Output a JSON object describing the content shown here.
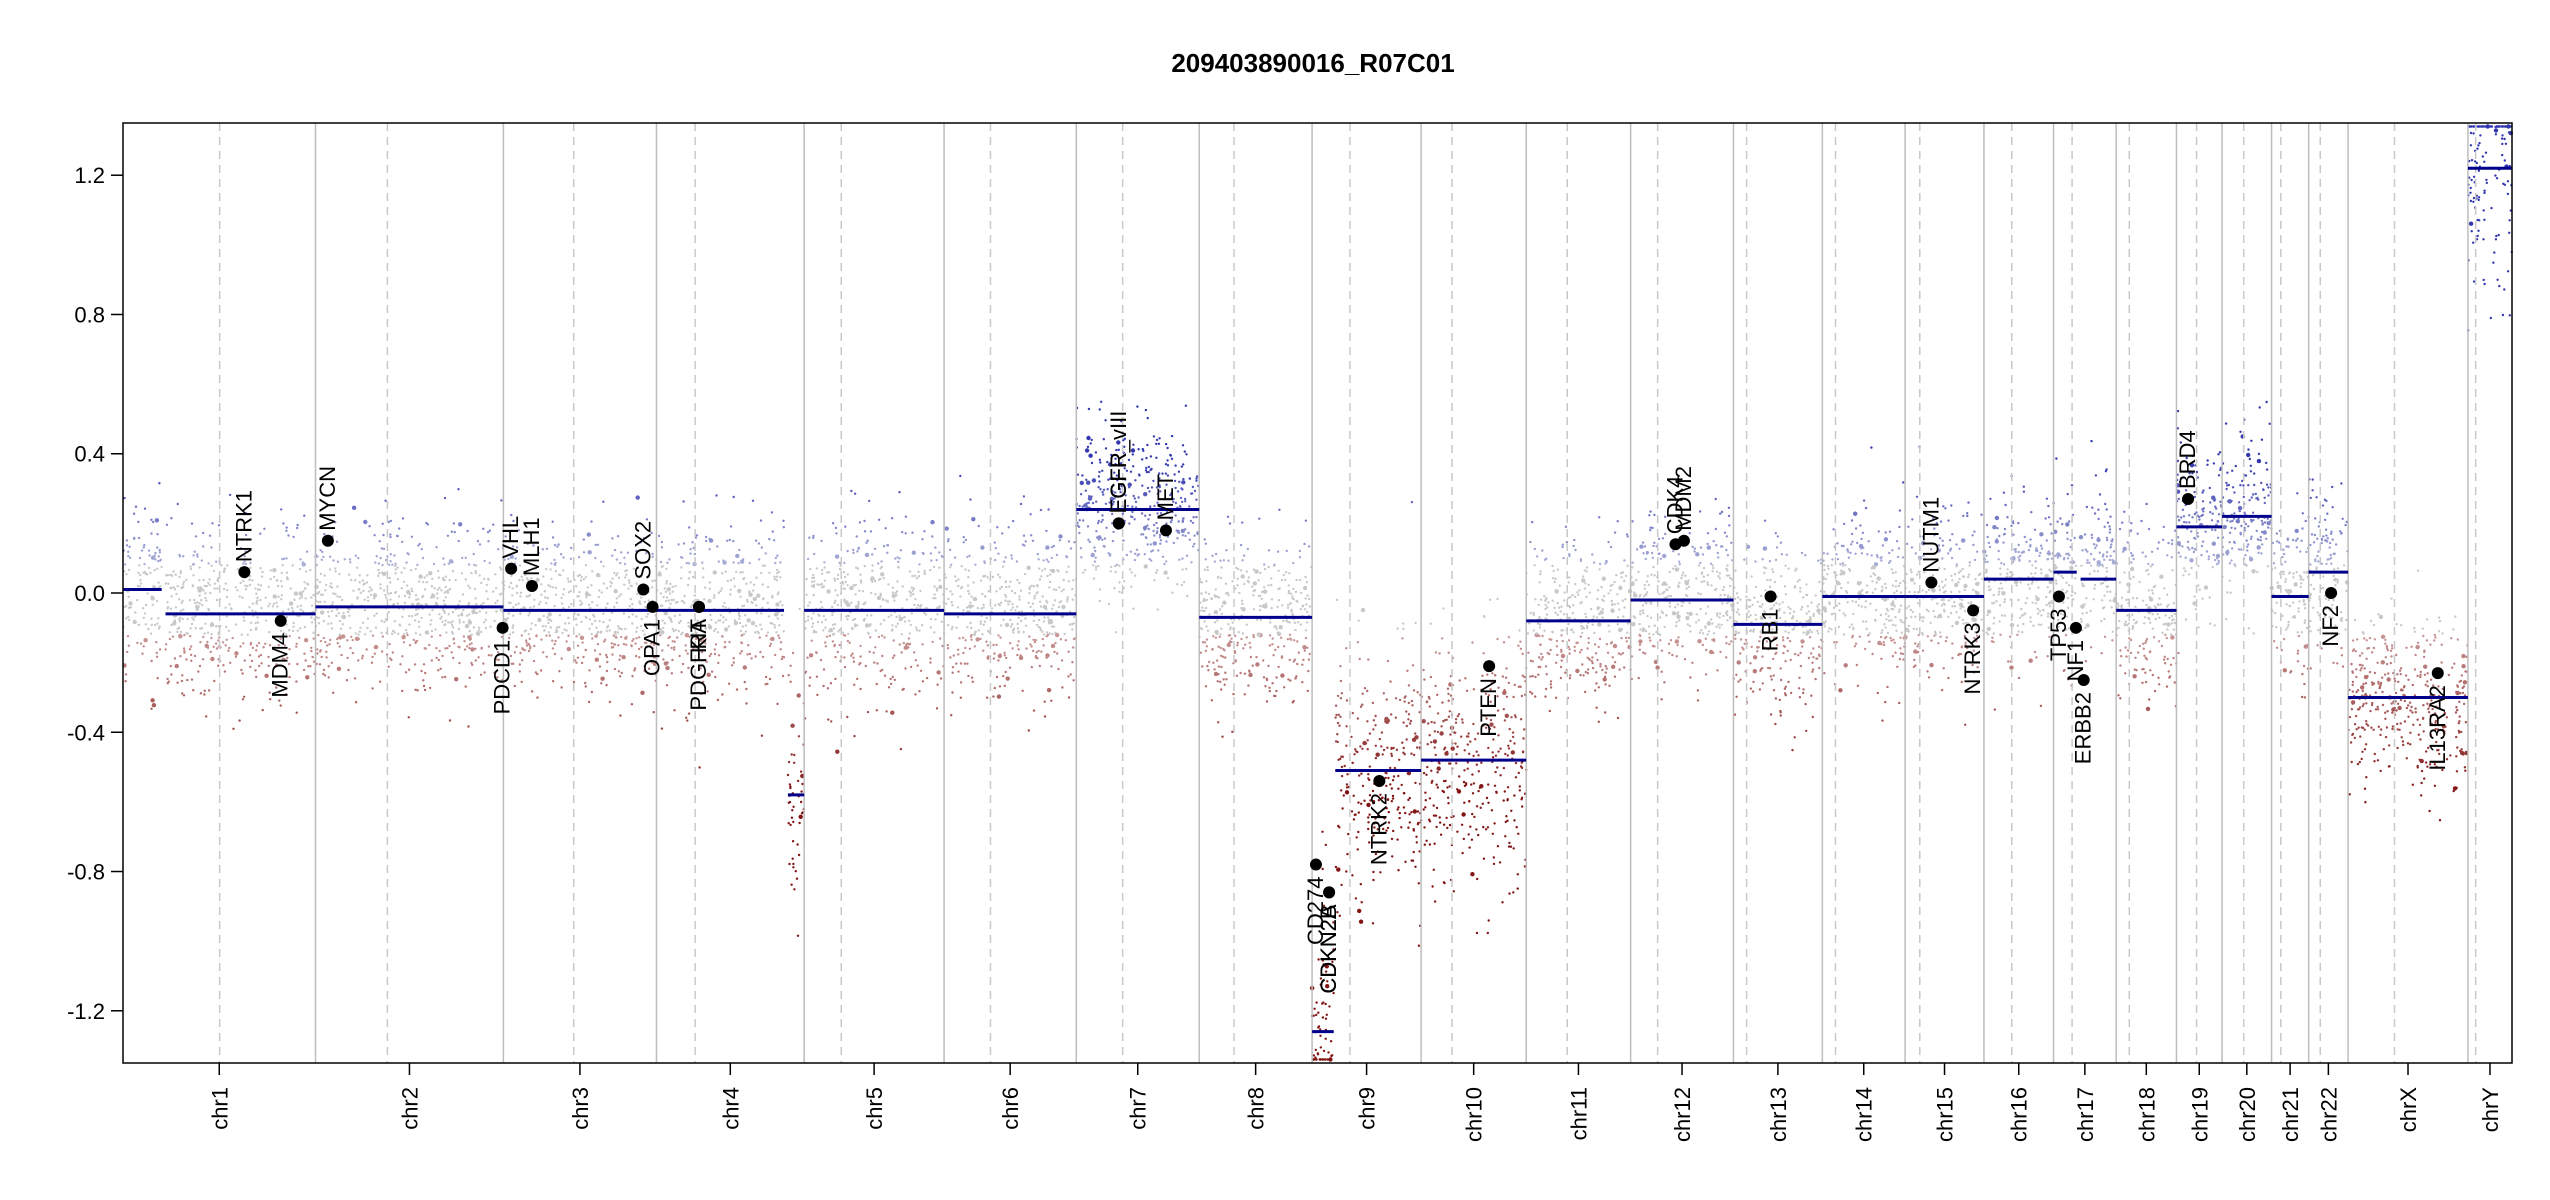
{
  "chart_data": {
    "type": "scatter",
    "title": "209403890016_R07C01",
    "xlabel": "",
    "ylabel": "",
    "ylim": [
      -1.35,
      1.35
    ],
    "y_ticks": [
      -1.2,
      -0.8,
      -0.4,
      0.0,
      0.4,
      0.8,
      1.2
    ],
    "y_tick_labels": [
      "-1.2",
      "-0.8",
      "-0.4",
      "0.0",
      "0.4",
      "0.8",
      "1.2"
    ],
    "grid": false,
    "legend": "none",
    "colors": {
      "gain": "#1f2fa0",
      "neutral": "#bfbfbf",
      "loss": "#8b1a1a",
      "segment": "#00008b",
      "chrom_boundary": "#bdbdbd",
      "centromere": "#c8c8c8",
      "gene_marker": "#000000"
    },
    "chromosomes": [
      {
        "name": "chr1",
        "len": 249,
        "cen": 125
      },
      {
        "name": "chr2",
        "len": 243,
        "cen": 93
      },
      {
        "name": "chr3",
        "len": 198,
        "cen": 91
      },
      {
        "name": "chr4",
        "len": 191,
        "cen": 50
      },
      {
        "name": "chr5",
        "len": 181,
        "cen": 48
      },
      {
        "name": "chr6",
        "len": 171,
        "cen": 60
      },
      {
        "name": "chr7",
        "len": 159,
        "cen": 60
      },
      {
        "name": "chr8",
        "len": 146,
        "cen": 45
      },
      {
        "name": "chr9",
        "len": 141,
        "cen": 49
      },
      {
        "name": "chr10",
        "len": 136,
        "cen": 40
      },
      {
        "name": "chr11",
        "len": 135,
        "cen": 53
      },
      {
        "name": "chr12",
        "len": 133,
        "cen": 35
      },
      {
        "name": "chr13",
        "len": 115,
        "cen": 17
      },
      {
        "name": "chr14",
        "len": 107,
        "cen": 17
      },
      {
        "name": "chr15",
        "len": 102,
        "cen": 19
      },
      {
        "name": "chr16",
        "len": 90,
        "cen": 36
      },
      {
        "name": "chr17",
        "len": 81,
        "cen": 24
      },
      {
        "name": "chr18",
        "len": 78,
        "cen": 17
      },
      {
        "name": "chr19",
        "len": 59,
        "cen": 26
      },
      {
        "name": "chr20",
        "len": 64,
        "cen": 28
      },
      {
        "name": "chr21",
        "len": 48,
        "cen": 12
      },
      {
        "name": "chr22",
        "len": 51,
        "cen": 15
      },
      {
        "name": "chrX",
        "len": 155,
        "cen": 60
      },
      {
        "name": "chrY",
        "len": 57,
        "cen": 10
      }
    ],
    "segments": [
      {
        "chr": "chr1",
        "start": 0,
        "end": 50,
        "value": 0.01
      },
      {
        "chr": "chr1",
        "start": 55,
        "end": 249,
        "value": -0.06
      },
      {
        "chr": "chr2",
        "start": 0,
        "end": 243,
        "value": -0.04
      },
      {
        "chr": "chr3",
        "start": 0,
        "end": 198,
        "value": -0.05
      },
      {
        "chr": "chr4",
        "start": 0,
        "end": 165,
        "value": -0.05
      },
      {
        "chr": "chr4",
        "start": 170,
        "end": 191,
        "value": -0.58
      },
      {
        "chr": "chr5",
        "start": 0,
        "end": 181,
        "value": -0.05
      },
      {
        "chr": "chr6",
        "start": 0,
        "end": 171,
        "value": -0.06
      },
      {
        "chr": "chr7",
        "start": 0,
        "end": 159,
        "value": 0.24
      },
      {
        "chr": "chr8",
        "start": 0,
        "end": 146,
        "value": -0.07
      },
      {
        "chr": "chr9",
        "start": 0,
        "end": 28,
        "value": -1.26
      },
      {
        "chr": "chr9",
        "start": 30,
        "end": 141,
        "value": -0.51
      },
      {
        "chr": "chr10",
        "start": 0,
        "end": 136,
        "value": -0.48
      },
      {
        "chr": "chr11",
        "start": 0,
        "end": 135,
        "value": -0.08
      },
      {
        "chr": "chr12",
        "start": 0,
        "end": 133,
        "value": -0.02
      },
      {
        "chr": "chr13",
        "start": 0,
        "end": 115,
        "value": -0.09
      },
      {
        "chr": "chr14",
        "start": 0,
        "end": 107,
        "value": -0.01
      },
      {
        "chr": "chr15",
        "start": 0,
        "end": 102,
        "value": -0.01
      },
      {
        "chr": "chr16",
        "start": 0,
        "end": 90,
        "value": 0.04
      },
      {
        "chr": "chr17",
        "start": 0,
        "end": 30,
        "value": 0.06
      },
      {
        "chr": "chr17",
        "start": 35,
        "end": 81,
        "value": 0.04
      },
      {
        "chr": "chr18",
        "start": 0,
        "end": 78,
        "value": -0.05
      },
      {
        "chr": "chr19",
        "start": 0,
        "end": 59,
        "value": 0.19
      },
      {
        "chr": "chr20",
        "start": 0,
        "end": 64,
        "value": 0.22
      },
      {
        "chr": "chr21",
        "start": 0,
        "end": 48,
        "value": -0.01
      },
      {
        "chr": "chr22",
        "start": 0,
        "end": 51,
        "value": 0.06
      },
      {
        "chr": "chrX",
        "start": 0,
        "end": 155,
        "value": -0.3
      },
      {
        "chr": "chrY",
        "start": 0,
        "end": 57,
        "value": 1.22
      }
    ],
    "genes": [
      {
        "name": "NTRK1",
        "chr": "chr1",
        "pos": 157,
        "value": 0.06,
        "label_side": "above"
      },
      {
        "name": "MDM4",
        "chr": "chr1",
        "pos": 204,
        "value": -0.08,
        "label_side": "below"
      },
      {
        "name": "MYCN",
        "chr": "chr2",
        "pos": 16,
        "value": 0.15,
        "label_side": "above"
      },
      {
        "name": "PDCD1",
        "chr": "chr2",
        "pos": 242,
        "value": -0.1,
        "label_side": "below"
      },
      {
        "name": "VHL",
        "chr": "chr3",
        "pos": 10,
        "value": 0.07,
        "label_side": "above"
      },
      {
        "name": "MLH1",
        "chr": "chr3",
        "pos": 37,
        "value": 0.02,
        "label_side": "above"
      },
      {
        "name": "SOX2",
        "chr": "chr3",
        "pos": 181,
        "value": 0.01,
        "label_side": "above"
      },
      {
        "name": "OPA1",
        "chr": "chr3",
        "pos": 193,
        "value": -0.04,
        "label_side": "below"
      },
      {
        "name": "PDGFRA",
        "chr": "chr4",
        "pos": 55,
        "value": -0.04,
        "label_side": "below"
      },
      {
        "name": "KIT",
        "chr": "chr4",
        "pos": 55,
        "value": -0.04,
        "label_side": "below"
      },
      {
        "name": "EGFR",
        "chr": "chr7",
        "pos": 55,
        "value": 0.2,
        "label_side": "above"
      },
      {
        "name": "EGFR_vIII",
        "chr": "chr7",
        "pos": 55,
        "value": 0.2,
        "label_side": "above"
      },
      {
        "name": "MET",
        "chr": "chr7",
        "pos": 116,
        "value": 0.18,
        "label_side": "above"
      },
      {
        "name": "CD274",
        "chr": "chr9",
        "pos": 5,
        "value": -0.78,
        "label_side": "below"
      },
      {
        "name": "CDKN2A",
        "chr": "chr9",
        "pos": 22,
        "value": -0.86,
        "label_side": "below"
      },
      {
        "name": "CDKN2B",
        "chr": "chr9",
        "pos": 22,
        "value": -0.86,
        "label_side": "below"
      },
      {
        "name": "NTRK2",
        "chr": "chr9",
        "pos": 87,
        "value": -0.54,
        "label_side": "below"
      },
      {
        "name": "PTEN",
        "chr": "chr10",
        "pos": 88,
        "value": -0.21,
        "label_side": "below"
      },
      {
        "name": "CDK4",
        "chr": "chr12",
        "pos": 58,
        "value": 0.14,
        "label_side": "above"
      },
      {
        "name": "MDM2",
        "chr": "chr12",
        "pos": 69,
        "value": 0.15,
        "label_side": "above"
      },
      {
        "name": "RB1",
        "chr": "chr13",
        "pos": 48,
        "value": -0.01,
        "label_side": "below"
      },
      {
        "name": "NUTM1",
        "chr": "chr15",
        "pos": 34,
        "value": 0.03,
        "label_side": "above"
      },
      {
        "name": "NTRK3",
        "chr": "chr15",
        "pos": 88,
        "value": -0.05,
        "label_side": "below"
      },
      {
        "name": "TP53",
        "chr": "chr17",
        "pos": 7,
        "value": -0.01,
        "label_side": "below"
      },
      {
        "name": "NF1",
        "chr": "chr17",
        "pos": 29,
        "value": -0.1,
        "label_side": "below"
      },
      {
        "name": "ERBB2",
        "chr": "chr17",
        "pos": 39,
        "value": -0.25,
        "label_side": "below"
      },
      {
        "name": "BRD4",
        "chr": "chr19",
        "pos": 15,
        "value": 0.27,
        "label_side": "above"
      },
      {
        "name": "NF2",
        "chr": "chr22",
        "pos": 29,
        "value": 0.0,
        "label_side": "below"
      },
      {
        "name": "IL13RA2",
        "chr": "chrX",
        "pos": 116,
        "value": -0.23,
        "label_side": "below"
      }
    ]
  }
}
